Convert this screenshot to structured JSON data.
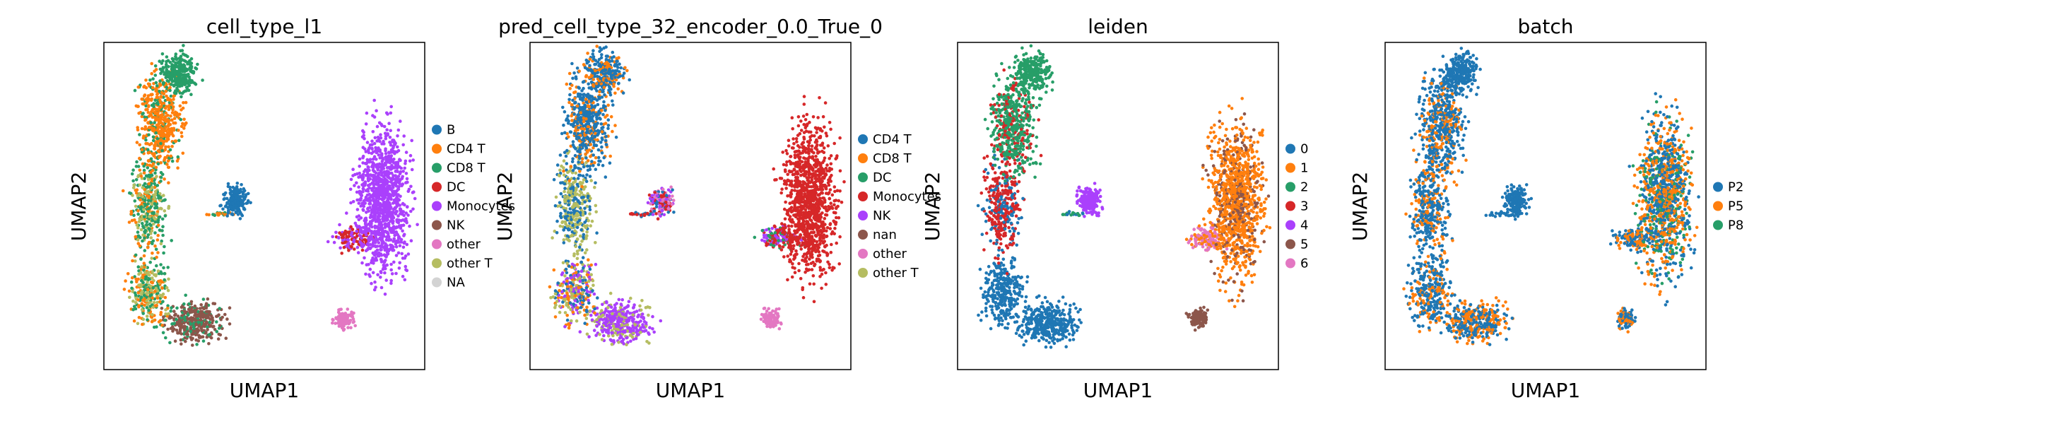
{
  "chart_data": [
    {
      "type": "scatter",
      "title": "cell_type_l1",
      "xlabel": "UMAP1",
      "ylabel": "UMAP2",
      "grid": false,
      "legend_position": "right",
      "legend": [
        {
          "label": "B",
          "color": "#1f77b4"
        },
        {
          "label": "CD4 T",
          "color": "#ff7f0e"
        },
        {
          "label": "CD8 T",
          "color": "#279e68"
        },
        {
          "label": "DC",
          "color": "#d62728"
        },
        {
          "label": "Monocytes",
          "color": "#aa40fc"
        },
        {
          "label": "NK",
          "color": "#8c564b"
        },
        {
          "label": "other",
          "color": "#e377c2"
        },
        {
          "label": "other T",
          "color": "#b5bd61"
        },
        {
          "label": "NA",
          "color": "#d3d3d3"
        }
      ]
    },
    {
      "type": "scatter",
      "title": "pred_cell_type_32_encoder_0.0_True_0",
      "xlabel": "UMAP1",
      "ylabel": "UMAP2",
      "grid": false,
      "legend_position": "right",
      "legend": [
        {
          "label": "CD4 T",
          "color": "#1f77b4"
        },
        {
          "label": "CD8 T",
          "color": "#ff7f0e"
        },
        {
          "label": "DC",
          "color": "#279e68"
        },
        {
          "label": "Monocytes",
          "color": "#d62728"
        },
        {
          "label": "NK",
          "color": "#aa40fc"
        },
        {
          "label": "nan",
          "color": "#8c564b"
        },
        {
          "label": "other",
          "color": "#e377c2"
        },
        {
          "label": "other T",
          "color": "#b5bd61"
        }
      ]
    },
    {
      "type": "scatter",
      "title": "leiden",
      "xlabel": "UMAP1",
      "ylabel": "UMAP2",
      "grid": false,
      "legend_position": "right",
      "legend": [
        {
          "label": "0",
          "color": "#1f77b4"
        },
        {
          "label": "1",
          "color": "#ff7f0e"
        },
        {
          "label": "2",
          "color": "#279e68"
        },
        {
          "label": "3",
          "color": "#d62728"
        },
        {
          "label": "4",
          "color": "#aa40fc"
        },
        {
          "label": "5",
          "color": "#8c564b"
        },
        {
          "label": "6",
          "color": "#e377c2"
        }
      ]
    },
    {
      "type": "scatter",
      "title": "batch",
      "xlabel": "UMAP1",
      "ylabel": "UMAP2",
      "grid": false,
      "legend_position": "right",
      "legend": [
        {
          "label": "P2",
          "color": "#1f77b4"
        },
        {
          "label": "P5",
          "color": "#ff7f0e"
        },
        {
          "label": "P8",
          "color": "#279e68"
        }
      ]
    }
  ]
}
